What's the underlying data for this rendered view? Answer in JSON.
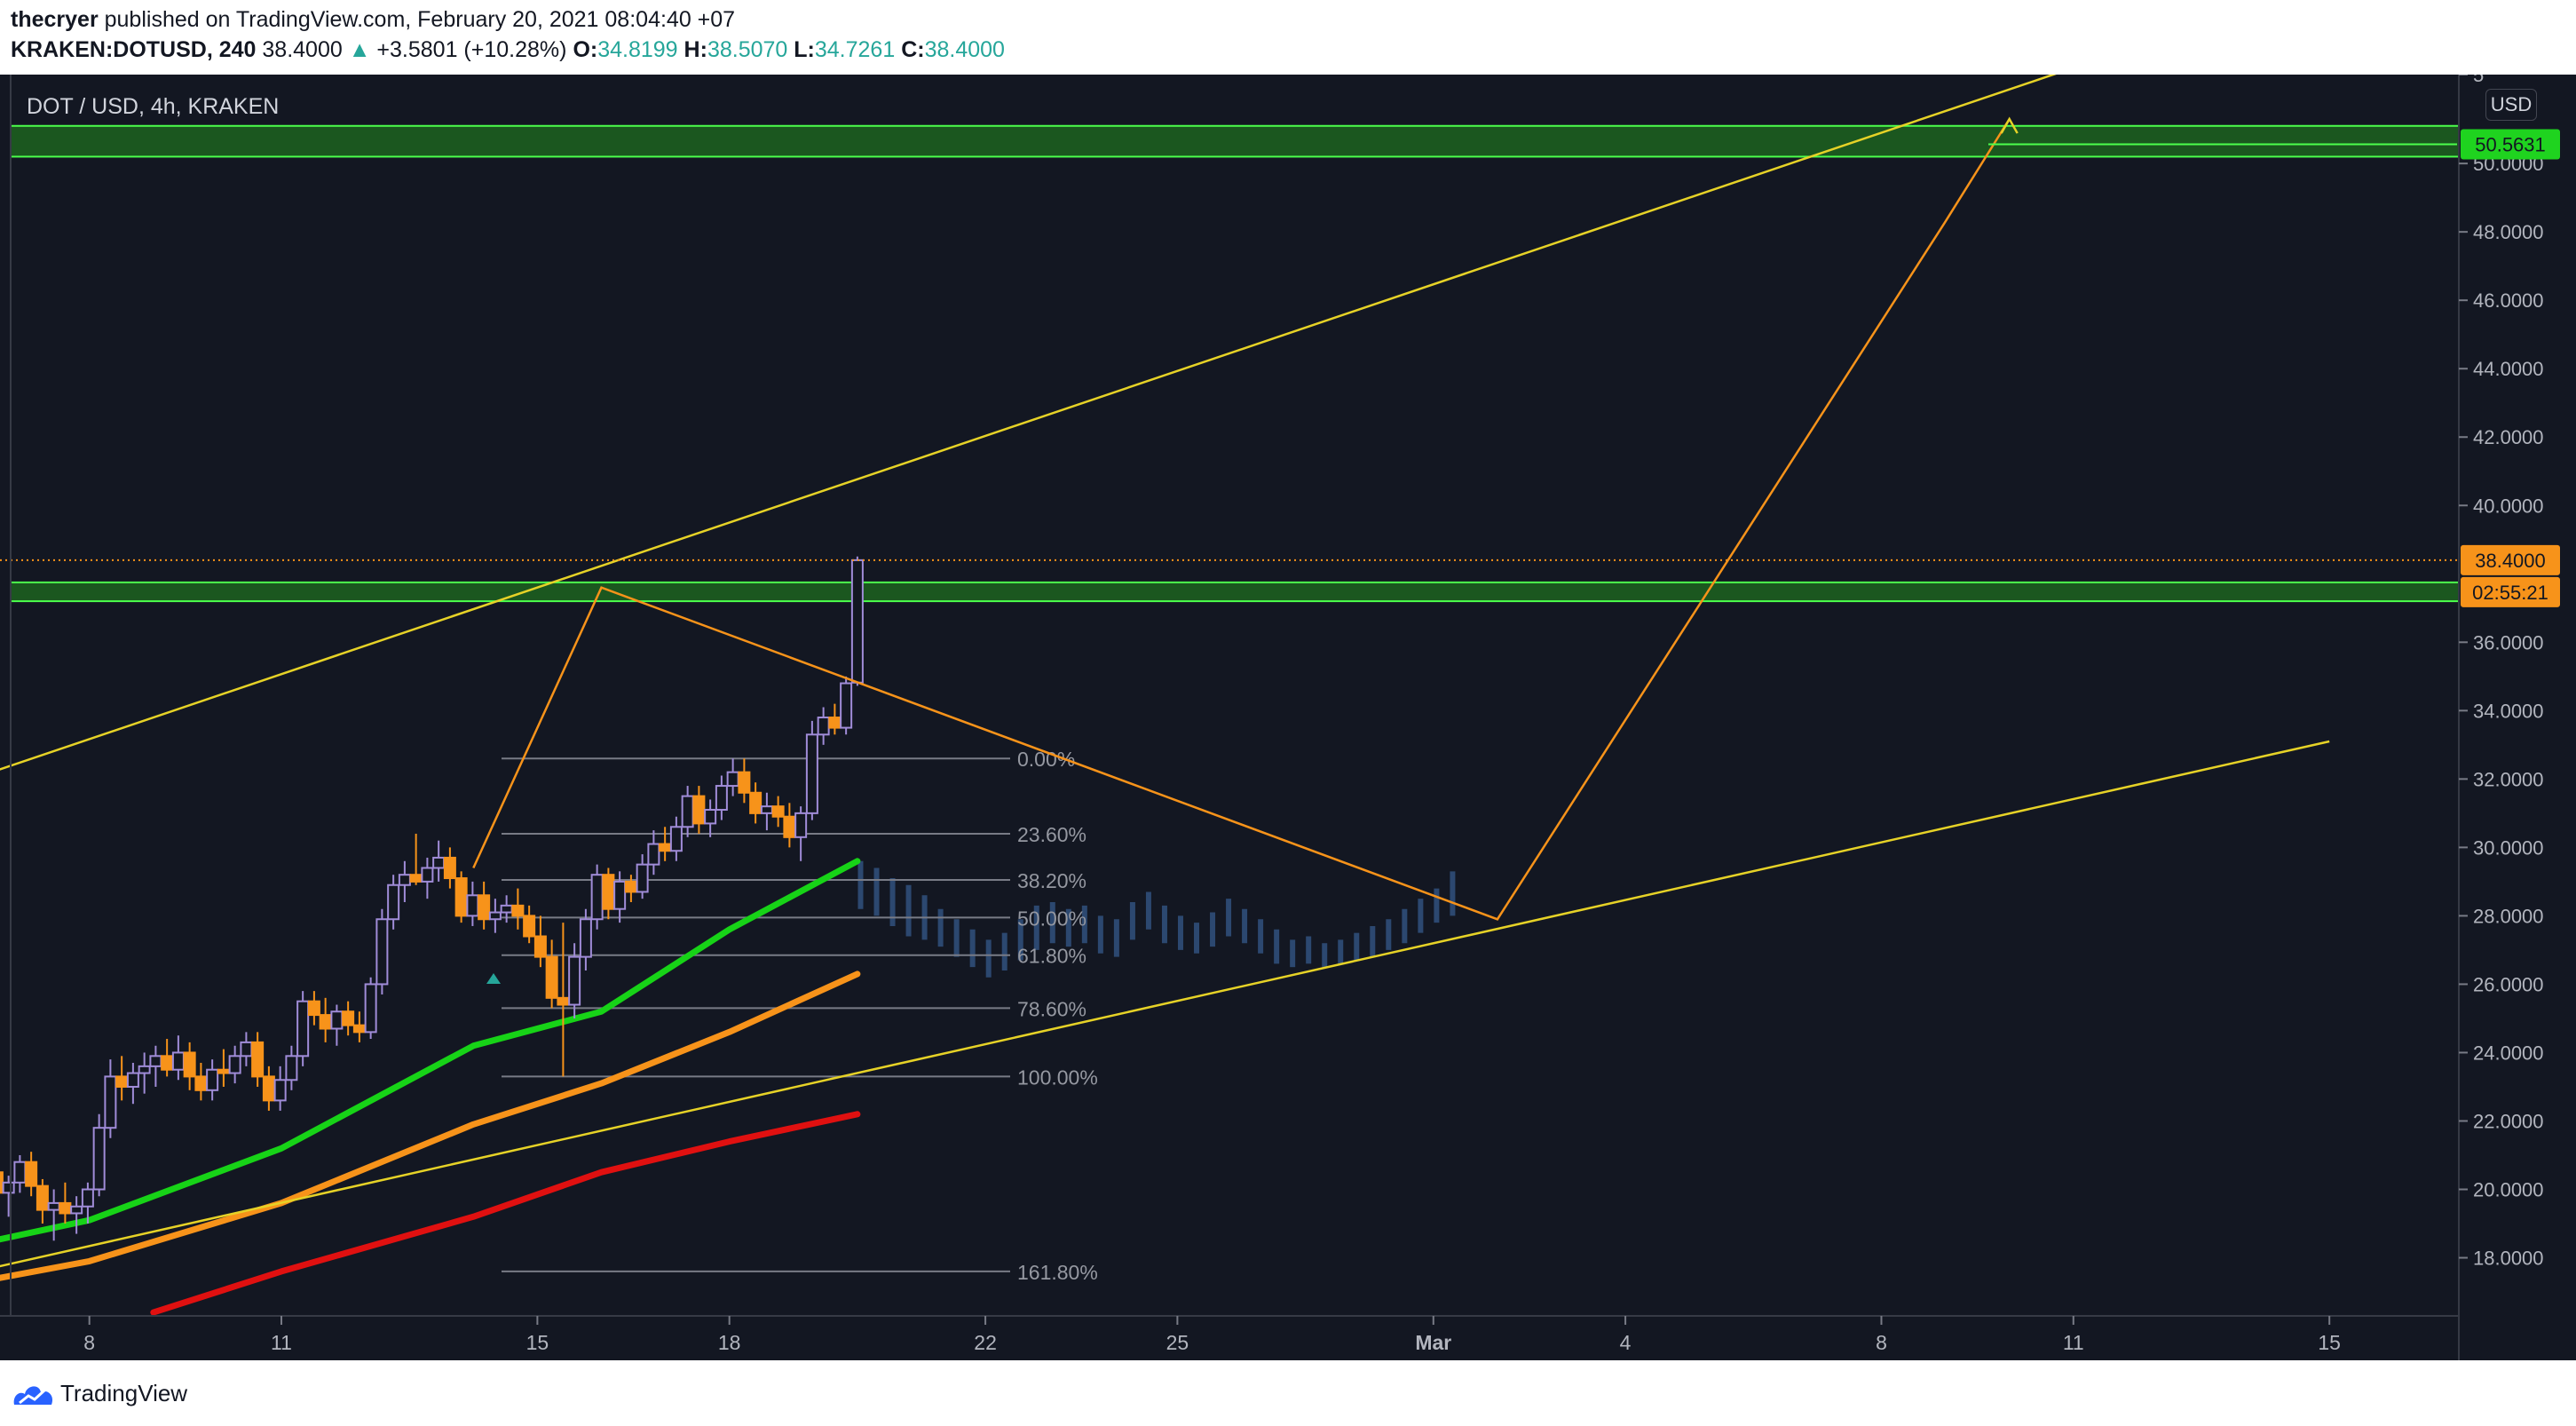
{
  "header": {
    "author": "thecryer",
    "published_text": "published on TradingView.com, February 20, 2021 08:04:40 +07",
    "symbol": "KRAKEN:DOTUSD, 240",
    "last": "38.4000",
    "up_arrow": "▲",
    "change": "+3.5801 (+10.28%)",
    "open_label": "O:",
    "open": "34.8199",
    "high_label": "H:",
    "high": "38.5070",
    "low_label": "L:",
    "low": "34.7261",
    "close_label": "C:",
    "close": "38.4000"
  },
  "chart_title": "DOT / USD, 4h, KRAKEN",
  "currency_button": "USD",
  "footer": {
    "brand": "TradingView"
  },
  "colors": {
    "background": "#131722",
    "zone_fill": "#1f6e1f",
    "zone_border": "#4cff4c",
    "trendline": "#e6d227",
    "projection": "#f7931a",
    "ema_fast": "#17d317",
    "ema_mid": "#f7931a",
    "ema_slow": "#e01010",
    "candle_up": "#a08cd8",
    "candle_down": "#f7931a",
    "ghost": "#2c4870",
    "fib": "#787b86",
    "price_label": "#f7931a",
    "target_label": "#1fd31f"
  },
  "chart_data": {
    "type": "candlestick",
    "symbol": "DOT / USD",
    "timeframe": "4h",
    "exchange": "KRAKEN",
    "x_tick_labels": [
      "8",
      "11",
      "15",
      "18",
      "22",
      "25",
      "Mar",
      "4",
      "8",
      "11",
      "15"
    ],
    "y_tick_labels": [
      "5",
      "50.0000",
      "48.0000",
      "46.0000",
      "44.0000",
      "42.0000",
      "40.0000",
      "36.0000",
      "34.0000",
      "32.0000",
      "30.0000",
      "28.0000",
      "26.0000",
      "24.0000",
      "22.0000",
      "20.0000",
      "18.0000"
    ],
    "ylim": [
      16.3,
      52.6
    ],
    "last_price": 38.4,
    "last_price_label": "38.4000",
    "countdown_label": "02:55:21",
    "target_price": 50.5631,
    "target_price_label": "50.5631",
    "grid": false,
    "fib_levels": [
      {
        "label": "0.00%",
        "price": 32.6
      },
      {
        "label": "23.60%",
        "price": 30.4
      },
      {
        "label": "38.20%",
        "price": 29.05
      },
      {
        "label": "50.00%",
        "price": 27.95
      },
      {
        "label": "61.80%",
        "price": 26.85
      },
      {
        "label": "78.60%",
        "price": 25.3
      },
      {
        "label": "100.00%",
        "price": 23.3
      },
      {
        "label": "161.80%",
        "price": 17.6
      }
    ],
    "zones": [
      {
        "top": 51.1,
        "bottom": 50.2
      },
      {
        "top": 37.75,
        "bottom": 37.2
      }
    ],
    "trendlines": [
      {
        "x": [
          "Feb 6",
          "Mar 11"
        ],
        "y": [
          31.9,
          52.8
        ]
      },
      {
        "x": [
          "Feb 6",
          "Mar 15"
        ],
        "y": [
          17.5,
          33.1
        ]
      }
    ],
    "projection_path": {
      "x": [
        "Feb 14",
        "Feb 16",
        "Mar 2",
        "Mar 9",
        "Mar 10"
      ],
      "y": [
        29.4,
        37.6,
        27.9,
        48.3,
        51.3
      ]
    },
    "moving_averages": [
      {
        "color": "#17d317",
        "x": [
          "Feb 6",
          "Feb 8",
          "Feb 11",
          "Feb 14",
          "Feb 16",
          "Feb 18",
          "Feb 20"
        ],
        "y": [
          18.3,
          19.1,
          21.2,
          24.2,
          25.2,
          27.6,
          29.6
        ]
      },
      {
        "color": "#f7931a",
        "x": [
          "Feb 6",
          "Feb 8",
          "Feb 11",
          "Feb 14",
          "Feb 16",
          "Feb 18",
          "Feb 20"
        ],
        "y": [
          17.2,
          17.9,
          19.6,
          21.9,
          23.1,
          24.6,
          26.3
        ]
      },
      {
        "color": "#e01010",
        "x": [
          "Feb 9",
          "Feb 11",
          "Feb 14",
          "Feb 16",
          "Feb 18",
          "Feb 20"
        ],
        "y": [
          16.4,
          17.6,
          19.2,
          20.5,
          21.4,
          22.2
        ]
      }
    ],
    "candles": [
      {
        "o": 20.3,
        "h": 21.5,
        "l": 19.9,
        "c": 20.9
      },
      {
        "o": 20.9,
        "h": 21.3,
        "l": 19.8,
        "c": 20.1
      },
      {
        "o": 20.1,
        "h": 20.8,
        "l": 19.5,
        "c": 20.5
      },
      {
        "o": 20.5,
        "h": 21.0,
        "l": 19.6,
        "c": 19.9
      },
      {
        "o": 19.9,
        "h": 20.4,
        "l": 19.2,
        "c": 20.2
      },
      {
        "o": 20.2,
        "h": 21.0,
        "l": 19.9,
        "c": 20.8
      },
      {
        "o": 20.8,
        "h": 21.1,
        "l": 19.8,
        "c": 20.1
      },
      {
        "o": 20.1,
        "h": 20.3,
        "l": 19.0,
        "c": 19.4
      },
      {
        "o": 19.4,
        "h": 20.0,
        "l": 18.5,
        "c": 19.6
      },
      {
        "o": 19.6,
        "h": 20.2,
        "l": 19.0,
        "c": 19.3
      },
      {
        "o": 19.3,
        "h": 19.8,
        "l": 18.7,
        "c": 19.5
      },
      {
        "o": 19.5,
        "h": 20.2,
        "l": 19.0,
        "c": 20.0
      },
      {
        "o": 20.0,
        "h": 22.2,
        "l": 19.8,
        "c": 21.8
      },
      {
        "o": 21.8,
        "h": 23.8,
        "l": 21.5,
        "c": 23.3
      },
      {
        "o": 23.3,
        "h": 23.9,
        "l": 22.6,
        "c": 23.0
      },
      {
        "o": 23.0,
        "h": 23.7,
        "l": 22.5,
        "c": 23.4
      },
      {
        "o": 23.4,
        "h": 24.0,
        "l": 22.8,
        "c": 23.6
      },
      {
        "o": 23.6,
        "h": 24.2,
        "l": 23.0,
        "c": 23.9
      },
      {
        "o": 23.9,
        "h": 24.4,
        "l": 23.3,
        "c": 23.5
      },
      {
        "o": 23.5,
        "h": 24.5,
        "l": 23.2,
        "c": 24.0
      },
      {
        "o": 24.0,
        "h": 24.3,
        "l": 22.9,
        "c": 23.3
      },
      {
        "o": 23.3,
        "h": 23.7,
        "l": 22.6,
        "c": 22.9
      },
      {
        "o": 22.9,
        "h": 23.8,
        "l": 22.6,
        "c": 23.5
      },
      {
        "o": 23.5,
        "h": 24.1,
        "l": 23.0,
        "c": 23.4
      },
      {
        "o": 23.4,
        "h": 24.2,
        "l": 23.1,
        "c": 23.9
      },
      {
        "o": 23.9,
        "h": 24.6,
        "l": 23.6,
        "c": 24.3
      },
      {
        "o": 24.3,
        "h": 24.6,
        "l": 23.0,
        "c": 23.3
      },
      {
        "o": 23.3,
        "h": 23.6,
        "l": 22.3,
        "c": 22.6
      },
      {
        "o": 22.6,
        "h": 23.6,
        "l": 22.3,
        "c": 23.2
      },
      {
        "o": 23.2,
        "h": 24.2,
        "l": 22.9,
        "c": 23.9
      },
      {
        "o": 23.9,
        "h": 25.8,
        "l": 23.6,
        "c": 25.5
      },
      {
        "o": 25.5,
        "h": 25.8,
        "l": 24.8,
        "c": 25.1
      },
      {
        "o": 25.1,
        "h": 25.6,
        "l": 24.3,
        "c": 24.7
      },
      {
        "o": 24.7,
        "h": 25.4,
        "l": 24.2,
        "c": 25.2
      },
      {
        "o": 25.2,
        "h": 25.5,
        "l": 24.5,
        "c": 24.8
      },
      {
        "o": 24.8,
        "h": 25.2,
        "l": 24.3,
        "c": 24.6
      },
      {
        "o": 24.6,
        "h": 26.2,
        "l": 24.4,
        "c": 26.0
      },
      {
        "o": 26.0,
        "h": 28.2,
        "l": 25.7,
        "c": 27.9
      },
      {
        "o": 27.9,
        "h": 29.2,
        "l": 27.6,
        "c": 28.9
      },
      {
        "o": 28.9,
        "h": 29.6,
        "l": 28.4,
        "c": 29.2
      },
      {
        "o": 29.2,
        "h": 30.4,
        "l": 28.9,
        "c": 29.0
      },
      {
        "o": 29.0,
        "h": 29.7,
        "l": 28.5,
        "c": 29.4
      },
      {
        "o": 29.4,
        "h": 30.2,
        "l": 29.0,
        "c": 29.7
      },
      {
        "o": 29.7,
        "h": 30.0,
        "l": 28.8,
        "c": 29.1
      },
      {
        "o": 29.1,
        "h": 29.3,
        "l": 27.8,
        "c": 28.0
      },
      {
        "o": 28.0,
        "h": 29.0,
        "l": 27.7,
        "c": 28.6
      },
      {
        "o": 28.6,
        "h": 29.0,
        "l": 27.6,
        "c": 27.9
      },
      {
        "o": 27.9,
        "h": 28.5,
        "l": 27.5,
        "c": 28.1
      },
      {
        "o": 28.1,
        "h": 28.6,
        "l": 27.8,
        "c": 28.3
      },
      {
        "o": 28.3,
        "h": 28.8,
        "l": 27.6,
        "c": 28.0
      },
      {
        "o": 28.0,
        "h": 28.3,
        "l": 27.2,
        "c": 27.4
      },
      {
        "o": 27.4,
        "h": 28.0,
        "l": 26.5,
        "c": 26.8
      },
      {
        "o": 26.8,
        "h": 27.3,
        "l": 25.3,
        "c": 25.6
      },
      {
        "o": 25.6,
        "h": 27.8,
        "l": 23.3,
        "c": 25.4
      },
      {
        "o": 25.4,
        "h": 27.2,
        "l": 25.0,
        "c": 26.8
      },
      {
        "o": 26.8,
        "h": 28.2,
        "l": 26.4,
        "c": 27.9
      },
      {
        "o": 27.9,
        "h": 29.5,
        "l": 27.6,
        "c": 29.2
      },
      {
        "o": 29.2,
        "h": 29.4,
        "l": 27.9,
        "c": 28.2
      },
      {
        "o": 28.2,
        "h": 29.3,
        "l": 27.8,
        "c": 29.0
      },
      {
        "o": 29.0,
        "h": 29.2,
        "l": 28.4,
        "c": 28.7
      },
      {
        "o": 28.7,
        "h": 29.8,
        "l": 28.5,
        "c": 29.5
      },
      {
        "o": 29.5,
        "h": 30.5,
        "l": 29.2,
        "c": 30.1
      },
      {
        "o": 30.1,
        "h": 30.6,
        "l": 29.6,
        "c": 29.9
      },
      {
        "o": 29.9,
        "h": 30.9,
        "l": 29.6,
        "c": 30.6
      },
      {
        "o": 30.6,
        "h": 31.8,
        "l": 30.3,
        "c": 31.5
      },
      {
        "o": 31.5,
        "h": 31.8,
        "l": 30.4,
        "c": 30.7
      },
      {
        "o": 30.7,
        "h": 31.4,
        "l": 30.3,
        "c": 31.1
      },
      {
        "o": 31.1,
        "h": 32.1,
        "l": 30.8,
        "c": 31.8
      },
      {
        "o": 31.8,
        "h": 32.6,
        "l": 31.5,
        "c": 32.2
      },
      {
        "o": 32.2,
        "h": 32.6,
        "l": 31.3,
        "c": 31.6
      },
      {
        "o": 31.6,
        "h": 31.9,
        "l": 30.7,
        "c": 31.0
      },
      {
        "o": 31.0,
        "h": 31.6,
        "l": 30.5,
        "c": 31.2
      },
      {
        "o": 31.2,
        "h": 31.5,
        "l": 30.6,
        "c": 30.9
      },
      {
        "o": 30.9,
        "h": 31.3,
        "l": 30.0,
        "c": 30.3
      },
      {
        "o": 30.3,
        "h": 31.2,
        "l": 29.6,
        "c": 31.0
      },
      {
        "o": 31.0,
        "h": 33.7,
        "l": 30.8,
        "c": 33.3
      },
      {
        "o": 33.3,
        "h": 34.1,
        "l": 33.0,
        "c": 33.8
      },
      {
        "o": 33.8,
        "h": 34.2,
        "l": 33.3,
        "c": 33.5
      },
      {
        "o": 33.5,
        "h": 35.0,
        "l": 33.3,
        "c": 34.8
      },
      {
        "o": 34.8199,
        "h": 38.507,
        "l": 34.7261,
        "c": 38.4
      }
    ],
    "ghost_bars": [
      {
        "h": 29.6,
        "l": 28.2
      },
      {
        "h": 29.4,
        "l": 28.0
      },
      {
        "h": 29.1,
        "l": 27.7
      },
      {
        "h": 28.9,
        "l": 27.4
      },
      {
        "h": 28.6,
        "l": 27.3
      },
      {
        "h": 28.2,
        "l": 27.1
      },
      {
        "h": 27.9,
        "l": 26.8
      },
      {
        "h": 27.6,
        "l": 26.5
      },
      {
        "h": 27.3,
        "l": 26.2
      },
      {
        "h": 27.5,
        "l": 26.4
      },
      {
        "h": 27.9,
        "l": 26.7
      },
      {
        "h": 28.3,
        "l": 27.0
      },
      {
        "h": 28.4,
        "l": 27.2
      },
      {
        "h": 28.2,
        "l": 27.1
      },
      {
        "h": 28.3,
        "l": 27.2
      },
      {
        "h": 28.0,
        "l": 26.9
      },
      {
        "h": 27.9,
        "l": 26.8
      },
      {
        "h": 28.4,
        "l": 27.3
      },
      {
        "h": 28.7,
        "l": 27.6
      },
      {
        "h": 28.3,
        "l": 27.2
      },
      {
        "h": 28.0,
        "l": 27.0
      },
      {
        "h": 27.8,
        "l": 26.9
      },
      {
        "h": 28.1,
        "l": 27.1
      },
      {
        "h": 28.5,
        "l": 27.4
      },
      {
        "h": 28.2,
        "l": 27.2
      },
      {
        "h": 27.9,
        "l": 26.9
      },
      {
        "h": 27.6,
        "l": 26.6
      },
      {
        "h": 27.3,
        "l": 26.5
      },
      {
        "h": 27.4,
        "l": 26.6
      },
      {
        "h": 27.2,
        "l": 26.5
      },
      {
        "h": 27.3,
        "l": 26.6
      },
      {
        "h": 27.5,
        "l": 26.7
      },
      {
        "h": 27.7,
        "l": 26.8
      },
      {
        "h": 27.9,
        "l": 27.0
      },
      {
        "h": 28.2,
        "l": 27.2
      },
      {
        "h": 28.5,
        "l": 27.5
      },
      {
        "h": 28.8,
        "l": 27.8
      },
      {
        "h": 29.3,
        "l": 28.0
      }
    ]
  }
}
